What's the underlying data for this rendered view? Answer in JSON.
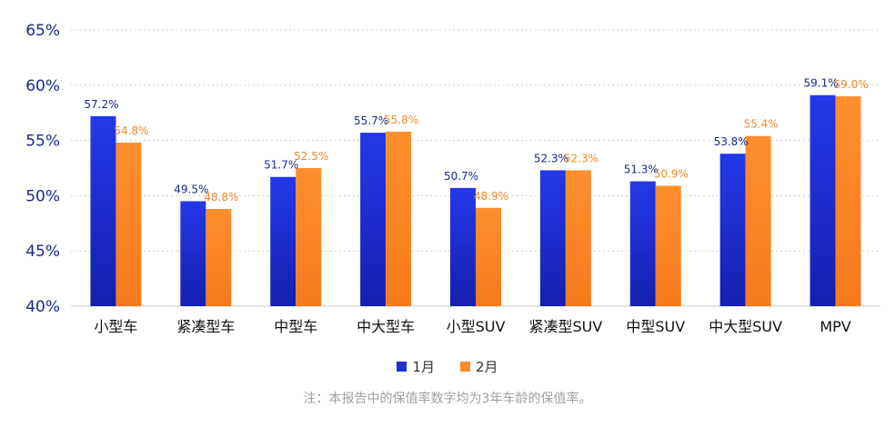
{
  "chart_data": {
    "type": "bar",
    "categories": [
      "小型车",
      "紧凑型车",
      "中型车",
      "中大型车",
      "小型SUV",
      "紧凑型SUV",
      "中型SUV",
      "中大型SUV",
      "MPV"
    ],
    "series": [
      {
        "name": "1月",
        "values": [
          57.2,
          49.5,
          51.7,
          55.7,
          50.7,
          52.3,
          51.3,
          53.8,
          59.1
        ],
        "labels": [
          "57.2%",
          "49.5%",
          "51.7%",
          "55.7%",
          "50.7%",
          "52.3%",
          "51.3%",
          "53.8%",
          "59.1%"
        ]
      },
      {
        "name": "2月",
        "values": [
          54.8,
          48.8,
          52.5,
          55.8,
          48.9,
          52.3,
          50.9,
          55.4,
          59.0
        ],
        "labels": [
          "54.8%",
          "48.8%",
          "52.5%",
          "55.8%",
          "48.9%",
          "52.3%",
          "50.9%",
          "55.4%",
          "59.0%"
        ]
      }
    ],
    "ylim": [
      40,
      65
    ],
    "yticks": [
      40,
      45,
      50,
      55,
      60,
      65
    ],
    "ytick_labels": [
      "40%",
      "45%",
      "50%",
      "55%",
      "60%",
      "65%"
    ],
    "grid": true,
    "legend_position": "bottom",
    "colors": {
      "series1": "#1f2fd6",
      "series2": "#ff8a2a",
      "axis_text": "#1a2a8a",
      "label1": "#1a2a8a",
      "label2": "#f08a2a"
    }
  },
  "note": "注：本报告中的保值率数字均为3年车龄的保值率。"
}
